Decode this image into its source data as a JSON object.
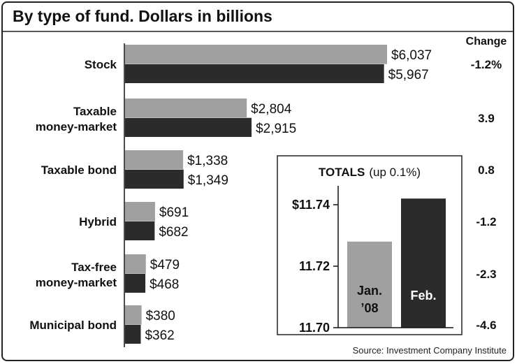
{
  "title": "By type of fund. Dollars in billions",
  "change_header": "Change",
  "source": "Source: Investment Company Institute",
  "colors": {
    "jan": "#a0a0a0",
    "feb": "#2b2b2b",
    "sep": "#bbbbbb"
  },
  "chart_data": [
    {
      "type": "bar",
      "orientation": "horizontal",
      "categories": [
        {
          "lines": [
            "Stock"
          ],
          "jan": 6037,
          "feb": 5967,
          "jan_label": "$6,037",
          "feb_label": "$5,967",
          "change": "-1.2%"
        },
        {
          "lines": [
            "Taxable",
            "money-market"
          ],
          "jan": 2804,
          "feb": 2915,
          "jan_label": "$2,804",
          "feb_label": "$2,915",
          "change": "3.9"
        },
        {
          "lines": [
            "Taxable bond"
          ],
          "jan": 1338,
          "feb": 1349,
          "jan_label": "$1,338",
          "feb_label": "$1,349",
          "change": "0.8"
        },
        {
          "lines": [
            "Hybrid"
          ],
          "jan": 691,
          "feb": 682,
          "jan_label": "$691",
          "feb_label": "$682",
          "change": "-1.2"
        },
        {
          "lines": [
            "Tax-free",
            "money-market"
          ],
          "jan": 479,
          "feb": 468,
          "jan_label": "$479",
          "feb_label": "$468",
          "change": "-2.3"
        },
        {
          "lines": [
            "Municipal bond"
          ],
          "jan": 380,
          "feb": 362,
          "jan_label": "$380",
          "feb_label": "$362",
          "change": "-4.6"
        }
      ]
    },
    {
      "type": "bar",
      "title": "TOTALS",
      "subtitle": "(up 0.1%)",
      "ylim": [
        11.7,
        11.745
      ],
      "yticks": [
        {
          "value": 11.7,
          "label": "11.70"
        },
        {
          "value": 11.72,
          "label": "11.72"
        },
        {
          "value": 11.74,
          "label": "$11.74"
        }
      ],
      "bars": [
        {
          "lines": [
            "Jan.",
            "’08"
          ],
          "value": 11.728,
          "color": "#a0a0a0",
          "label_color": "#111111"
        },
        {
          "lines": [
            "Feb."
          ],
          "value": 11.742,
          "color": "#2b2b2b",
          "label_color": "#ffffff"
        }
      ]
    }
  ]
}
